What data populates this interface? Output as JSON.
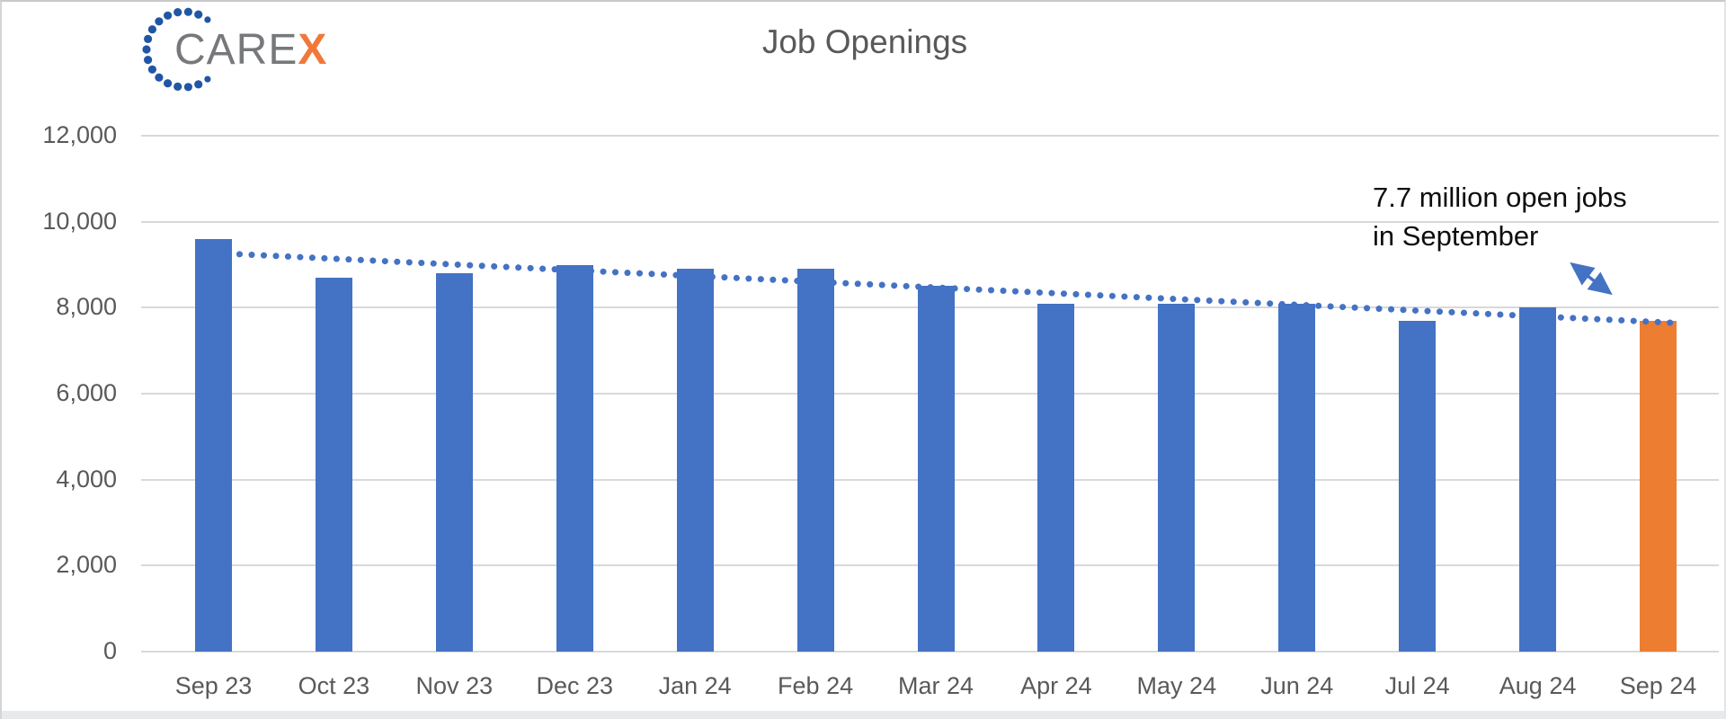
{
  "logo": {
    "brand_gray": "CARE",
    "brand_accent": "X",
    "dots_color": "#2156a5"
  },
  "header": {
    "title": "Job Openings"
  },
  "annotation": {
    "line1": "7.7 million open jobs",
    "line2": "in September"
  },
  "chart_data": {
    "type": "bar",
    "title": "Job Openings",
    "categories": [
      "Sep 23",
      "Oct 23",
      "Nov 23",
      "Dec 23",
      "Jan 24",
      "Feb 24",
      "Mar 24",
      "Apr 24",
      "May 24",
      "Jun 24",
      "Jul 24",
      "Aug 24",
      "Sep 24"
    ],
    "values": [
      9600,
      8700,
      8800,
      9000,
      8900,
      8900,
      8500,
      8100,
      8100,
      8100,
      7700,
      8000,
      7700
    ],
    "highlight_index": 12,
    "bar_color": "#4472c4",
    "highlight_color": "#ed7d31",
    "trendline": {
      "style": "dotted",
      "color": "#4472c4",
      "direction": "declining"
    },
    "xlabel": "",
    "ylabel": "",
    "y_axis": {
      "min": 0,
      "max": 12000,
      "step": 2000,
      "tick_labels": [
        "0",
        "2,000",
        "4,000",
        "6,000",
        "8,000",
        "10,000",
        "12,000"
      ]
    },
    "gridlines": true,
    "legend": false,
    "annotation": "7.7 million open jobs in September"
  },
  "colors": {
    "grid": "#d9d9d9",
    "axis_text": "#595959",
    "title_text": "#595959",
    "annotation_text": "#0d0d0d",
    "arrow": "#4472c4"
  }
}
